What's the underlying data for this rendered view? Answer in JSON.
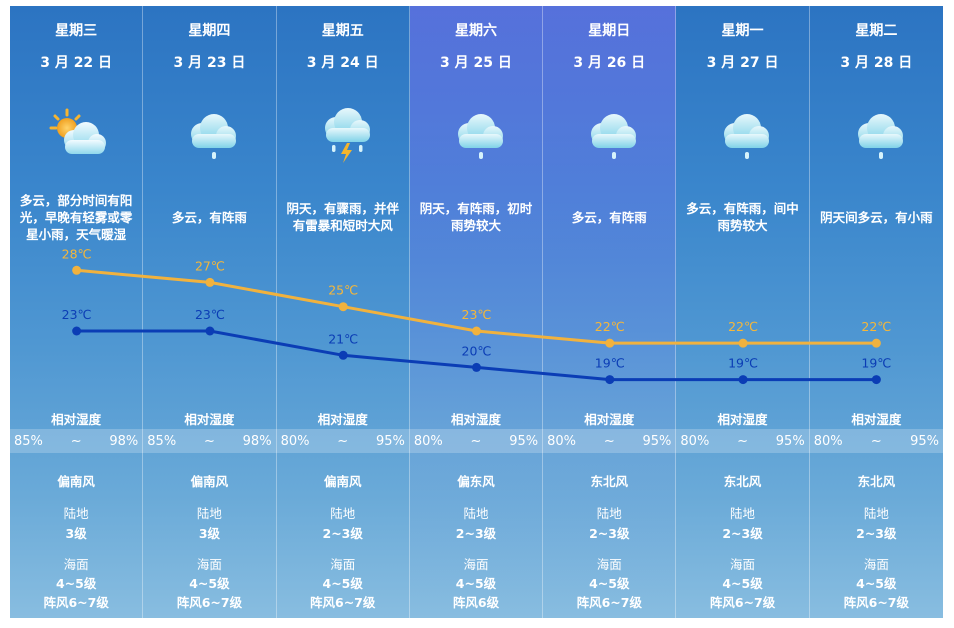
{
  "days": [
    {
      "weekday": "星期三",
      "date": "3 月 22 日",
      "icon": "partly-cloudy-sun-icon",
      "desc": "多云，部分时间有阳光，早晚有轻雾或零星小雨，天气暖湿",
      "hum_label": "相对湿度",
      "hum_low": "85%",
      "hum_sep": "~",
      "hum_high": "98%",
      "wind_dir": "偏南风",
      "land_label": "陆地",
      "land_level": "3级",
      "sea_label": "海面",
      "sea_level": "4~5级",
      "gust": "阵风6~7级"
    },
    {
      "weekday": "星期四",
      "date": "3 月 23 日",
      "icon": "cloud-rain-icon",
      "desc": "多云，有阵雨",
      "hum_label": "相对湿度",
      "hum_low": "85%",
      "hum_sep": "~",
      "hum_high": "98%",
      "wind_dir": "偏南风",
      "land_label": "陆地",
      "land_level": "3级",
      "sea_label": "海面",
      "sea_level": "4~5级",
      "gust": "阵风6~7级"
    },
    {
      "weekday": "星期五",
      "date": "3 月 24 日",
      "icon": "thunderstorm-icon",
      "desc": "阴天，有骤雨，并伴有雷暴和短时大风",
      "hum_label": "相对湿度",
      "hum_low": "80%",
      "hum_sep": "~",
      "hum_high": "95%",
      "wind_dir": "偏南风",
      "land_label": "陆地",
      "land_level": "2~3级",
      "sea_label": "海面",
      "sea_level": "4~5级",
      "gust": "阵风6~7级"
    },
    {
      "weekday": "星期六",
      "date": "3 月 25 日",
      "icon": "cloud-rain-icon",
      "desc": "阴天，有阵雨，初时雨势较大",
      "hum_label": "相对湿度",
      "hum_low": "80%",
      "hum_sep": "~",
      "hum_high": "95%",
      "wind_dir": "偏东风",
      "land_label": "陆地",
      "land_level": "2~3级",
      "sea_label": "海面",
      "sea_level": "4~5级",
      "gust": "阵风6级"
    },
    {
      "weekday": "星期日",
      "date": "3 月 26 日",
      "icon": "cloud-rain-icon",
      "desc": "多云，有阵雨",
      "hum_label": "相对湿度",
      "hum_low": "80%",
      "hum_sep": "~",
      "hum_high": "95%",
      "wind_dir": "东北风",
      "land_label": "陆地",
      "land_level": "2~3级",
      "sea_label": "海面",
      "sea_level": "4~5级",
      "gust": "阵风6~7级"
    },
    {
      "weekday": "星期一",
      "date": "3 月 27 日",
      "icon": "cloud-rain-icon",
      "desc": "多云，有阵雨，间中雨势较大",
      "hum_label": "相对湿度",
      "hum_low": "80%",
      "hum_sep": "~",
      "hum_high": "95%",
      "wind_dir": "东北风",
      "land_label": "陆地",
      "land_level": "2~3级",
      "sea_label": "海面",
      "sea_level": "4~5级",
      "gust": "阵风6~7级"
    },
    {
      "weekday": "星期二",
      "date": "3 月 28 日",
      "icon": "cloud-rain-icon",
      "desc": "阴天间多云，有小雨",
      "hum_label": "相对湿度",
      "hum_low": "80%",
      "hum_sep": "~",
      "hum_high": "95%",
      "wind_dir": "东北风",
      "land_label": "陆地",
      "land_level": "2~3级",
      "sea_label": "海面",
      "sea_level": "4~5级",
      "gust": "阵风6~7级"
    }
  ],
  "highlight_day_index": 3,
  "chart_data": {
    "type": "line",
    "categories": [
      "3 月 22 日",
      "3 月 23 日",
      "3 月 24 日",
      "3 月 25 日",
      "3 月 26 日",
      "3 月 27 日",
      "3 月 28 日"
    ],
    "series": [
      {
        "values": [
          28,
          27,
          25,
          23,
          22,
          22,
          22
        ],
        "labels": [
          "28℃",
          "27℃",
          "25℃",
          "23℃",
          "22℃",
          "22℃",
          "22℃"
        ],
        "color": "#f1b23e"
      },
      {
        "values": [
          23,
          23,
          21,
          20,
          19,
          19,
          19
        ],
        "labels": [
          "23℃",
          "23℃",
          "21℃",
          "20℃",
          "19℃",
          "19℃",
          "19℃"
        ],
        "color": "#0b3db5"
      }
    ],
    "ylim": [
      16,
      30
    ],
    "grid": false,
    "legend": "none"
  },
  "colors": {
    "high_line": "#f1b23e",
    "low_line": "#0b3db5",
    "low_label": "#0b3db5",
    "high_label": "#f5b73a",
    "text": "#ffffff"
  }
}
